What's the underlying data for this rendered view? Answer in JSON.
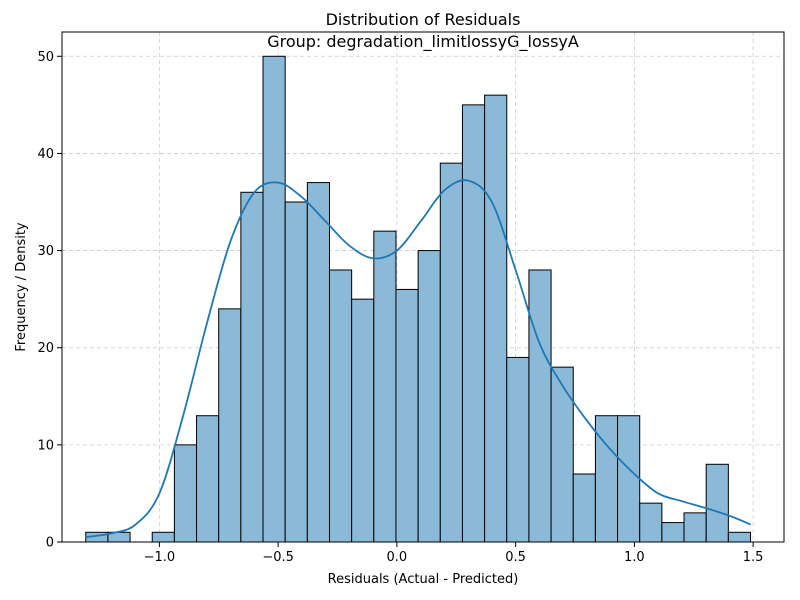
{
  "chart_data": {
    "type": "bar",
    "title": "Distribution of Residuals",
    "subtitle": "Group: degradation_limitlossyG_lossyA",
    "xlabel": "Residuals (Actual - Predicted)",
    "ylabel": "Frequency / Density",
    "xlim": [
      -1.41,
      1.63
    ],
    "ylim": [
      0,
      52.5
    ],
    "grid": true,
    "x_ticks": [
      -1.0,
      -0.5,
      0.0,
      0.5,
      1.0,
      1.5
    ],
    "x_tick_labels": [
      "−1.0",
      "−0.5",
      "0.0",
      "0.5",
      "1.0",
      "1.5"
    ],
    "y_ticks": [
      0,
      10,
      20,
      30,
      40,
      50
    ],
    "y_tick_labels": [
      "0",
      "10",
      "20",
      "30",
      "40",
      "50"
    ],
    "bin_start": -1.31,
    "bin_width": 0.0933,
    "counts": [
      1,
      1,
      0,
      1,
      10,
      13,
      24,
      36,
      50,
      35,
      37,
      28,
      25,
      32,
      26,
      30,
      39,
      45,
      46,
      19,
      28,
      18,
      7,
      13,
      13,
      4,
      2,
      3,
      8,
      1
    ],
    "kde": {
      "x": [
        -1.31,
        -1.2,
        -1.1,
        -1.0,
        -0.9,
        -0.8,
        -0.7,
        -0.6,
        -0.5,
        -0.4,
        -0.3,
        -0.2,
        -0.1,
        0.0,
        0.1,
        0.2,
        0.3,
        0.4,
        0.5,
        0.6,
        0.7,
        0.8,
        0.9,
        1.0,
        1.1,
        1.2,
        1.3,
        1.4,
        1.49
      ],
      "y": [
        0.5,
        0.9,
        1.8,
        5.0,
        13.0,
        22.5,
        31.0,
        36.0,
        37.0,
        35.5,
        33.0,
        30.5,
        29.2,
        30.0,
        33.0,
        36.2,
        37.2,
        35.0,
        28.0,
        20.5,
        16.0,
        12.5,
        9.5,
        7.0,
        5.0,
        4.2,
        3.5,
        2.7,
        1.8
      ]
    },
    "colors": {
      "bar_fill": "#8bb9d8",
      "bar_edge": "#000000",
      "kde_line": "#1f77b4",
      "grid": "#cccccc"
    }
  }
}
